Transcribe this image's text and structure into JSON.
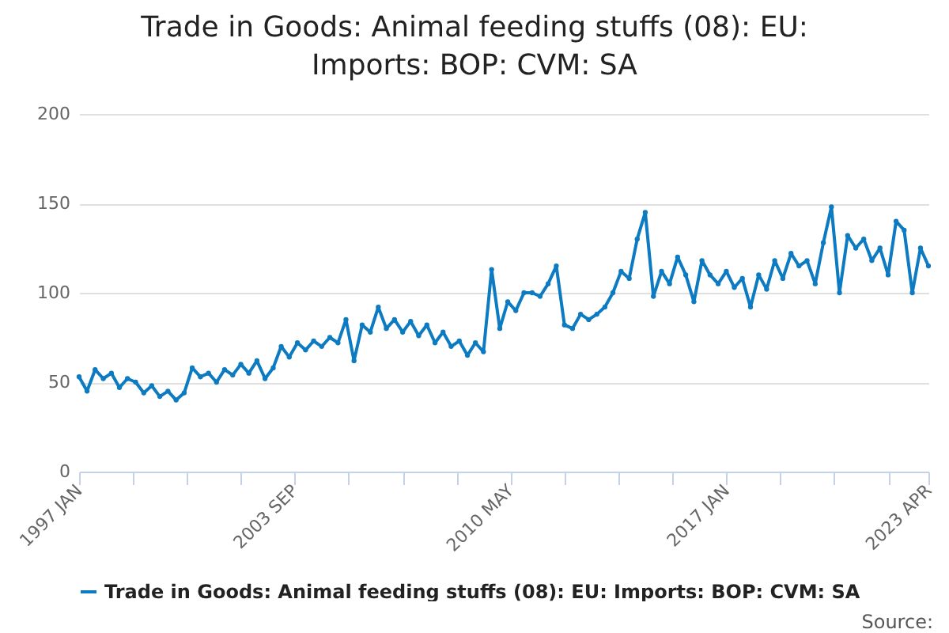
{
  "chart_data": {
    "type": "line",
    "title": "Trade in Goods: Animal feeding stuffs (08): EU: Imports: BOP: CVM: SA",
    "annotations": [
      "Source:"
    ],
    "x": [
      "1997-01",
      "1997-04",
      "1997-07",
      "1997-10",
      "1998-01",
      "1998-04",
      "1998-07",
      "1998-10",
      "1999-01",
      "1999-04",
      "1999-07",
      "1999-10",
      "2000-01",
      "2000-04",
      "2000-07",
      "2000-10",
      "2001-01",
      "2001-04",
      "2001-07",
      "2001-10",
      "2002-01",
      "2002-04",
      "2002-07",
      "2002-10",
      "2003-01",
      "2003-04",
      "2003-07",
      "2003-10",
      "2004-01",
      "2004-04",
      "2004-07",
      "2004-10",
      "2005-01",
      "2005-04",
      "2005-07",
      "2005-10",
      "2006-01",
      "2006-04",
      "2006-07",
      "2006-10",
      "2007-01",
      "2007-04",
      "2007-07",
      "2007-10",
      "2008-01",
      "2008-04",
      "2008-07",
      "2008-10",
      "2009-01",
      "2009-04",
      "2009-07",
      "2009-10",
      "2010-01",
      "2010-04",
      "2010-07",
      "2010-10",
      "2011-01",
      "2011-04",
      "2011-07",
      "2011-10",
      "2012-01",
      "2012-04",
      "2012-07",
      "2012-10",
      "2013-01",
      "2013-04",
      "2013-07",
      "2013-10",
      "2014-01",
      "2014-04",
      "2014-07",
      "2014-10",
      "2015-01",
      "2015-04",
      "2015-07",
      "2015-10",
      "2016-01",
      "2016-04",
      "2016-07",
      "2016-10",
      "2017-01",
      "2017-04",
      "2017-07",
      "2017-10",
      "2018-01",
      "2018-04",
      "2018-07",
      "2018-10",
      "2019-01",
      "2019-04",
      "2019-07",
      "2019-10",
      "2020-01",
      "2020-04",
      "2020-07",
      "2020-10",
      "2021-01",
      "2021-04",
      "2021-07",
      "2021-10",
      "2022-01",
      "2022-04",
      "2022-07",
      "2022-10",
      "2023-01",
      "2023-04"
    ],
    "series": [
      {
        "name": "Trade in Goods: Animal feeding stuffs (08): EU: Imports: BOP: CVM: SA",
        "color": "#0c7bc1",
        "values": [
          53,
          45,
          57,
          52,
          55,
          47,
          52,
          50,
          44,
          48,
          42,
          45,
          40,
          44,
          58,
          53,
          55,
          50,
          57,
          54,
          60,
          55,
          62,
          52,
          58,
          70,
          64,
          72,
          68,
          73,
          70,
          75,
          72,
          85,
          62,
          82,
          78,
          92,
          80,
          85,
          78,
          84,
          76,
          82,
          72,
          78,
          70,
          73,
          65,
          72,
          67,
          113,
          80,
          95,
          90,
          100,
          100,
          98,
          105,
          115,
          82,
          80,
          88,
          85,
          88,
          92,
          100,
          112,
          108,
          130,
          145,
          98,
          112,
          105,
          120,
          110,
          95,
          118,
          110,
          105,
          112,
          103,
          108,
          92,
          110,
          102,
          118,
          108,
          122,
          115,
          118,
          105,
          128,
          148,
          100,
          132,
          125,
          130,
          118,
          125,
          110,
          140,
          135,
          100,
          125,
          115
        ]
      }
    ],
    "ylim": [
      0,
      200
    ],
    "yticks": [
      0,
      50,
      100,
      150,
      200
    ],
    "xlim": [
      "1997-01",
      "2023-04"
    ],
    "xticks": [
      {
        "value": "1997-01",
        "label": "1997 JAN"
      },
      {
        "value": "1998-09",
        "label": null
      },
      {
        "value": "2000-05",
        "label": null
      },
      {
        "value": "2002-01",
        "label": null
      },
      {
        "value": "2003-09",
        "label": "2003 SEP"
      },
      {
        "value": "2005-05",
        "label": null
      },
      {
        "value": "2007-01",
        "label": null
      },
      {
        "value": "2008-09",
        "label": null
      },
      {
        "value": "2010-05",
        "label": "2010 MAY"
      },
      {
        "value": "2012-01",
        "label": null
      },
      {
        "value": "2013-09",
        "label": null
      },
      {
        "value": "2015-05",
        "label": null
      },
      {
        "value": "2017-01",
        "label": "2017 JAN"
      },
      {
        "value": "2018-09",
        "label": null
      },
      {
        "value": "2020-05",
        "label": null
      },
      {
        "value": "2022-01",
        "label": null
      },
      {
        "value": "2023-04",
        "label": "2023 APR"
      }
    ],
    "grid": "y",
    "legend": "bottom",
    "marker": "circle",
    "line_style": "solid"
  }
}
